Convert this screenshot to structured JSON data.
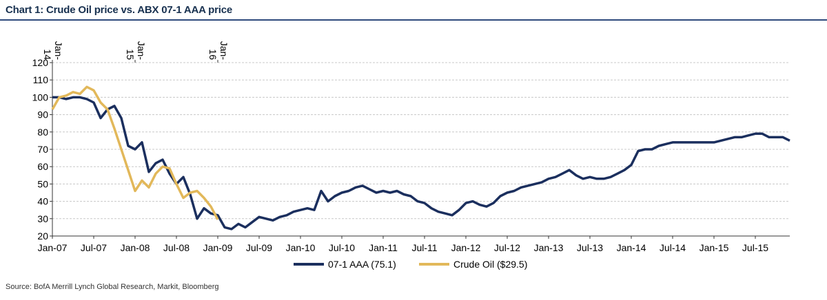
{
  "header": {
    "title": "Chart 1: Crude Oil price vs. ABX 07-1 AAA price"
  },
  "footer": {
    "source": "Source: BofA Merrill Lynch Global Research, Markit, Bloomberg"
  },
  "chart_data": {
    "type": "line",
    "title": "Chart 1: Crude Oil price vs. ABX 07-1 AAA price",
    "xlabel": "",
    "ylabel": "",
    "ylim": [
      20,
      120
    ],
    "yticks": [
      20,
      30,
      40,
      50,
      60,
      70,
      80,
      90,
      100,
      110,
      120
    ],
    "x_range": [
      "2007-01",
      "2015-12"
    ],
    "x_ticks": [
      "Jan-07",
      "Jul-07",
      "Jan-08",
      "Jul-08",
      "Jan-09",
      "Jul-09",
      "Jan-10",
      "Jul-10",
      "Jan-11",
      "Jul-11",
      "Jan-12",
      "Jul-12",
      "Jan-13",
      "Jul-13",
      "Jan-14",
      "Jul-14",
      "Jan-15",
      "Jul-15"
    ],
    "top_axis_ticks": [
      {
        "label": "Jan-14",
        "at": "2007-01"
      },
      {
        "label": "Jan-15",
        "at": "2008-01"
      },
      {
        "label": "Jan-16",
        "at": "2009-01"
      }
    ],
    "grid": true,
    "legend_position": "bottom-center",
    "series": [
      {
        "name": "07-1 AAA (75.1)",
        "color": "#1b2f5e",
        "points": [
          [
            "2007-01",
            100
          ],
          [
            "2007-02",
            100
          ],
          [
            "2007-03",
            99
          ],
          [
            "2007-04",
            100
          ],
          [
            "2007-05",
            100
          ],
          [
            "2007-06",
            99
          ],
          [
            "2007-07",
            97
          ],
          [
            "2007-08",
            88
          ],
          [
            "2007-09",
            93
          ],
          [
            "2007-10",
            95
          ],
          [
            "2007-11",
            88
          ],
          [
            "2007-12",
            72
          ],
          [
            "2008-01",
            70
          ],
          [
            "2008-02",
            74
          ],
          [
            "2008-03",
            57
          ],
          [
            "2008-04",
            62
          ],
          [
            "2008-05",
            64
          ],
          [
            "2008-06",
            56
          ],
          [
            "2008-07",
            50
          ],
          [
            "2008-08",
            54
          ],
          [
            "2008-09",
            44
          ],
          [
            "2008-10",
            30
          ],
          [
            "2008-11",
            36
          ],
          [
            "2008-12",
            33
          ],
          [
            "2009-01",
            32
          ],
          [
            "2009-02",
            25
          ],
          [
            "2009-03",
            24
          ],
          [
            "2009-04",
            27
          ],
          [
            "2009-05",
            25
          ],
          [
            "2009-06",
            28
          ],
          [
            "2009-07",
            31
          ],
          [
            "2009-08",
            30
          ],
          [
            "2009-09",
            29
          ],
          [
            "2009-10",
            31
          ],
          [
            "2009-11",
            32
          ],
          [
            "2009-12",
            34
          ],
          [
            "2010-01",
            35
          ],
          [
            "2010-02",
            36
          ],
          [
            "2010-03",
            35
          ],
          [
            "2010-04",
            46
          ],
          [
            "2010-05",
            40
          ],
          [
            "2010-06",
            43
          ],
          [
            "2010-07",
            45
          ],
          [
            "2010-08",
            46
          ],
          [
            "2010-09",
            48
          ],
          [
            "2010-10",
            49
          ],
          [
            "2010-11",
            47
          ],
          [
            "2010-12",
            45
          ],
          [
            "2011-01",
            46
          ],
          [
            "2011-02",
            45
          ],
          [
            "2011-03",
            46
          ],
          [
            "2011-04",
            44
          ],
          [
            "2011-05",
            43
          ],
          [
            "2011-06",
            40
          ],
          [
            "2011-07",
            39
          ],
          [
            "2011-08",
            36
          ],
          [
            "2011-09",
            34
          ],
          [
            "2011-10",
            33
          ],
          [
            "2011-11",
            32
          ],
          [
            "2011-12",
            35
          ],
          [
            "2012-01",
            39
          ],
          [
            "2012-02",
            40
          ],
          [
            "2012-03",
            38
          ],
          [
            "2012-04",
            37
          ],
          [
            "2012-05",
            39
          ],
          [
            "2012-06",
            43
          ],
          [
            "2012-07",
            45
          ],
          [
            "2012-08",
            46
          ],
          [
            "2012-09",
            48
          ],
          [
            "2012-10",
            49
          ],
          [
            "2012-11",
            50
          ],
          [
            "2012-12",
            51
          ],
          [
            "2013-01",
            53
          ],
          [
            "2013-02",
            54
          ],
          [
            "2013-03",
            56
          ],
          [
            "2013-04",
            58
          ],
          [
            "2013-05",
            55
          ],
          [
            "2013-06",
            53
          ],
          [
            "2013-07",
            54
          ],
          [
            "2013-08",
            53
          ],
          [
            "2013-09",
            53
          ],
          [
            "2013-10",
            54
          ],
          [
            "2013-11",
            56
          ],
          [
            "2013-12",
            58
          ],
          [
            "2014-01",
            61
          ],
          [
            "2014-02",
            69
          ],
          [
            "2014-03",
            70
          ],
          [
            "2014-04",
            70
          ],
          [
            "2014-05",
            72
          ],
          [
            "2014-06",
            73
          ],
          [
            "2014-07",
            74
          ],
          [
            "2014-08",
            74
          ],
          [
            "2014-09",
            74
          ],
          [
            "2014-10",
            74
          ],
          [
            "2014-11",
            74
          ],
          [
            "2014-12",
            74
          ],
          [
            "2015-01",
            74
          ],
          [
            "2015-02",
            75
          ],
          [
            "2015-03",
            76
          ],
          [
            "2015-04",
            77
          ],
          [
            "2015-05",
            77
          ],
          [
            "2015-06",
            78
          ],
          [
            "2015-07",
            79
          ],
          [
            "2015-08",
            79
          ],
          [
            "2015-09",
            77
          ],
          [
            "2015-10",
            77
          ],
          [
            "2015-11",
            77
          ],
          [
            "2015-12",
            75
          ]
        ]
      },
      {
        "name": "Crude Oil ($29.5)",
        "color": "#e2b85a",
        "axis": "top",
        "points": [
          [
            "2014-01",
            93
          ],
          [
            "2014-02",
            100
          ],
          [
            "2014-03",
            101
          ],
          [
            "2014-04",
            103
          ],
          [
            "2014-05",
            102
          ],
          [
            "2014-06",
            106
          ],
          [
            "2014-07",
            104
          ],
          [
            "2014-08",
            97
          ],
          [
            "2014-09",
            93
          ],
          [
            "2014-10",
            82
          ],
          [
            "2014-11",
            70
          ],
          [
            "2014-12",
            58
          ],
          [
            "2015-01",
            46
          ],
          [
            "2015-02",
            52
          ],
          [
            "2015-03",
            48
          ],
          [
            "2015-04",
            56
          ],
          [
            "2015-05",
            60
          ],
          [
            "2015-06",
            59
          ],
          [
            "2015-07",
            50
          ],
          [
            "2015-08",
            42
          ],
          [
            "2015-09",
            45
          ],
          [
            "2015-10",
            46
          ],
          [
            "2015-11",
            42
          ],
          [
            "2015-12",
            37
          ],
          [
            "2016-01",
            29.5
          ]
        ]
      }
    ]
  }
}
